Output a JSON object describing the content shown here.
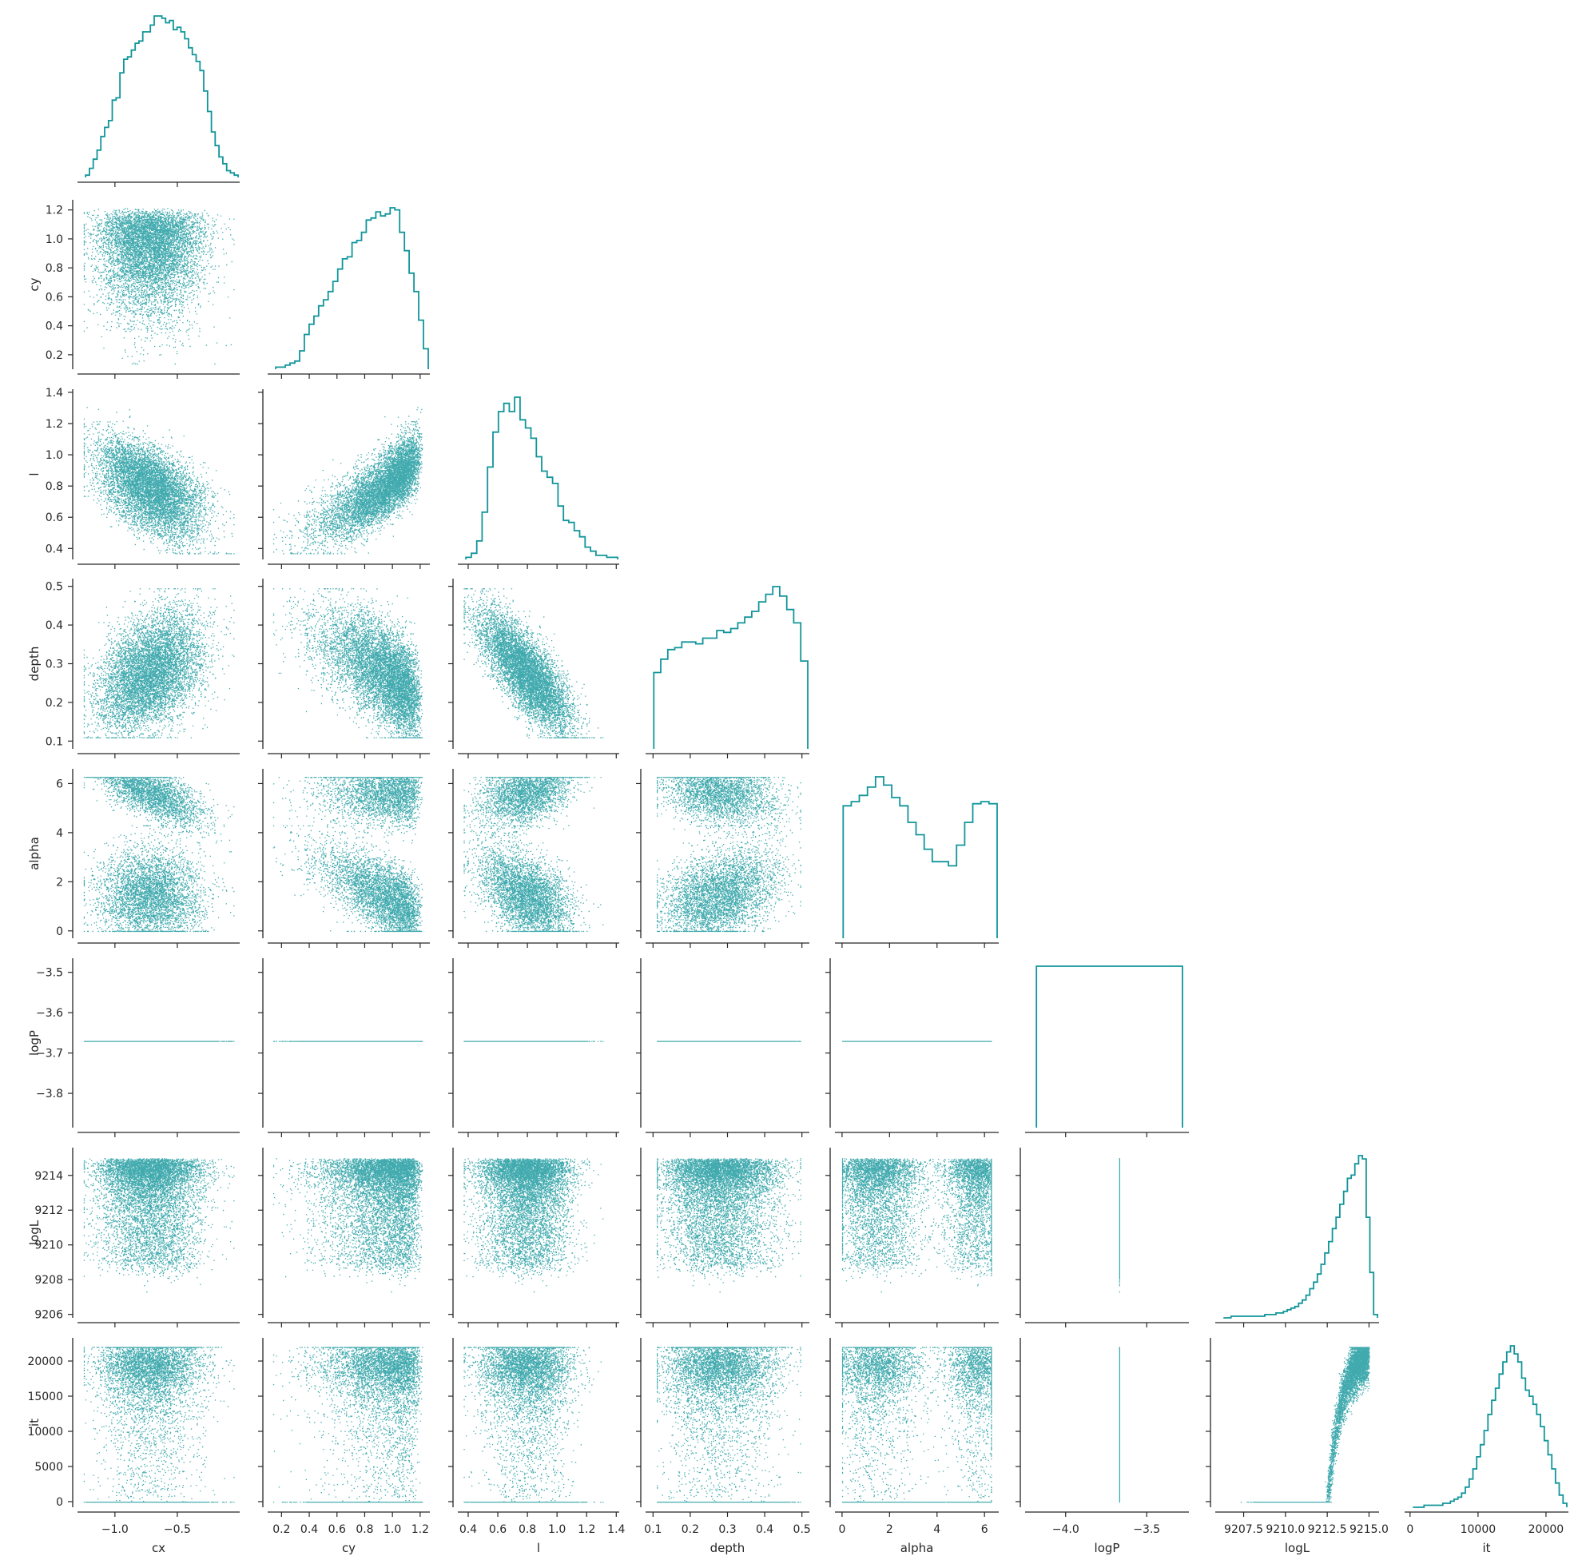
{
  "chart_data": {
    "type": "pairplot-corner",
    "color": "#11959a",
    "background": "#ffffff",
    "grid": false,
    "n_samples": 7000,
    "variables": [
      {
        "name": "cx",
        "range": [
          -1.3,
          -0.0
        ],
        "ticks": [
          {
            "v": -1.0,
            "t": "−1.0"
          },
          {
            "v": -0.5,
            "t": "−0.5"
          }
        ],
        "hist": [
          1,
          4,
          8,
          12,
          18,
          22,
          25,
          34,
          35,
          46,
          52,
          53,
          56,
          59,
          60,
          64,
          64,
          67,
          71,
          71,
          70,
          68,
          69,
          65,
          66,
          64,
          61,
          57,
          54,
          51,
          47,
          38,
          29,
          20,
          14,
          9,
          6,
          3,
          2,
          1
        ]
      },
      {
        "name": "cy",
        "range": [
          0.1,
          1.27
        ],
        "ticks": [
          {
            "v": 0.2,
            "t": "0.2"
          },
          {
            "v": 0.4,
            "t": "0.4"
          },
          {
            "v": 0.6,
            "t": "0.6"
          },
          {
            "v": 0.8,
            "t": "0.8"
          },
          {
            "v": 1.0,
            "t": "1.0"
          },
          {
            "v": 1.2,
            "t": "1.2"
          }
        ],
        "hist": [
          1,
          1,
          2,
          3,
          4,
          9,
          17,
          22,
          26,
          31,
          34,
          38,
          43,
          49,
          54,
          55,
          62,
          63,
          67,
          73,
          74,
          77,
          75,
          76,
          79,
          78,
          67,
          58,
          47,
          38,
          24,
          10
        ]
      },
      {
        "name": "l",
        "range": [
          0.33,
          1.42
        ],
        "ticks": [
          {
            "v": 0.4,
            "t": "0.4"
          },
          {
            "v": 0.6,
            "t": "0.6"
          },
          {
            "v": 0.8,
            "t": "0.8"
          },
          {
            "v": 1.0,
            "t": "1.0"
          },
          {
            "v": 1.2,
            "t": "1.2"
          },
          {
            "v": 1.4,
            "t": "1.4"
          }
        ],
        "hist": [
          1,
          3,
          9,
          23,
          45,
          62,
          72,
          76,
          72,
          79,
          68,
          64,
          59,
          50,
          43,
          40,
          37,
          26,
          19,
          18,
          14,
          11,
          6,
          4,
          2,
          2,
          1,
          1
        ]
      },
      {
        "name": "depth",
        "range": [
          0.08,
          0.52
        ],
        "ticks": [
          {
            "v": 0.1,
            "t": "0.1"
          },
          {
            "v": 0.2,
            "t": "0.2"
          },
          {
            "v": 0.3,
            "t": "0.3"
          },
          {
            "v": 0.4,
            "t": "0.4"
          },
          {
            "v": 0.5,
            "t": "0.5"
          }
        ],
        "hist": [
          40,
          47,
          52,
          53,
          56,
          56,
          55,
          58,
          58,
          62,
          61,
          63,
          66,
          69,
          72,
          77,
          81,
          85,
          80,
          73,
          66,
          46
        ]
      },
      {
        "name": "alpha",
        "range": [
          -0.3,
          6.6
        ],
        "ticks": [
          {
            "v": 0,
            "t": "0"
          },
          {
            "v": 2,
            "t": "2"
          },
          {
            "v": 4,
            "t": "4"
          },
          {
            "v": 6,
            "t": "6"
          }
        ],
        "hist": [
          64,
          66,
          69,
          73,
          78,
          74,
          68,
          64,
          56,
          50,
          43,
          37,
          37,
          35,
          45,
          56,
          65,
          66,
          65
        ]
      },
      {
        "name": "logP",
        "range": [
          -4.25,
          -3.24
        ],
        "ticks": [
          {
            "v": -4.0,
            "t": "−4.0"
          },
          {
            "v": -3.5,
            "t": "−3.5"
          }
        ],
        "yticks": [
          {
            "v": -3.5,
            "t": "−3.5"
          },
          {
            "v": -3.6,
            "t": "−3.6"
          },
          {
            "v": -3.7,
            "t": "−3.7"
          },
          {
            "v": -3.8,
            "t": "−3.8"
          }
        ],
        "yrange": [
          -3.885,
          -3.465
        ],
        "hist": [
          100
        ]
      },
      {
        "name": "logL",
        "range": [
          9205.8,
          9215.6
        ],
        "ticks": [
          {
            "v": 9207.5,
            "t": "9207.5"
          },
          {
            "v": 9210.0,
            "t": "9210.0"
          },
          {
            "v": 9212.5,
            "t": "9212.5"
          },
          {
            "v": 9215.0,
            "t": "9215.0"
          }
        ],
        "yticks": [
          {
            "v": 9206,
            "t": "9206"
          },
          {
            "v": 9208,
            "t": "9208"
          },
          {
            "v": 9210,
            "t": "9210"
          },
          {
            "v": 9212,
            "t": "9212"
          },
          {
            "v": 9214,
            "t": "9214"
          }
        ],
        "yrange": [
          9205.8,
          9215.6
        ],
        "hist": [
          0,
          0,
          1,
          1,
          1,
          1,
          1,
          1,
          1,
          1,
          1,
          2,
          2,
          2,
          3,
          3,
          4,
          5,
          6,
          7,
          9,
          11,
          14,
          18,
          22,
          27,
          33,
          40,
          47,
          55,
          62,
          70,
          78,
          86,
          88,
          95,
          100,
          98,
          62,
          28,
          2
        ]
      },
      {
        "name": "it",
        "range": [
          -800,
          23300
        ],
        "ticks": [
          {
            "v": 0,
            "t": "0"
          },
          {
            "v": 10000,
            "t": "10000"
          },
          {
            "v": 20000,
            "t": "20000"
          }
        ],
        "yticks": [
          {
            "v": 0,
            "t": "0"
          },
          {
            "v": 5000,
            "t": "5000"
          },
          {
            "v": 10000,
            "t": "10000"
          },
          {
            "v": 15000,
            "t": "15000"
          },
          {
            "v": 20000,
            "t": "20000"
          }
        ],
        "yrange": [
          -800,
          23300
        ],
        "hist": [
          0,
          0,
          0,
          1,
          1,
          1,
          1,
          1,
          2,
          2,
          3,
          4,
          5,
          7,
          10,
          14,
          19,
          25,
          31,
          38,
          46,
          53,
          59,
          66,
          72,
          77,
          80,
          76,
          72,
          64,
          58,
          55,
          51,
          46,
          40,
          33,
          26,
          19,
          12,
          6,
          2
        ]
      }
    ]
  }
}
